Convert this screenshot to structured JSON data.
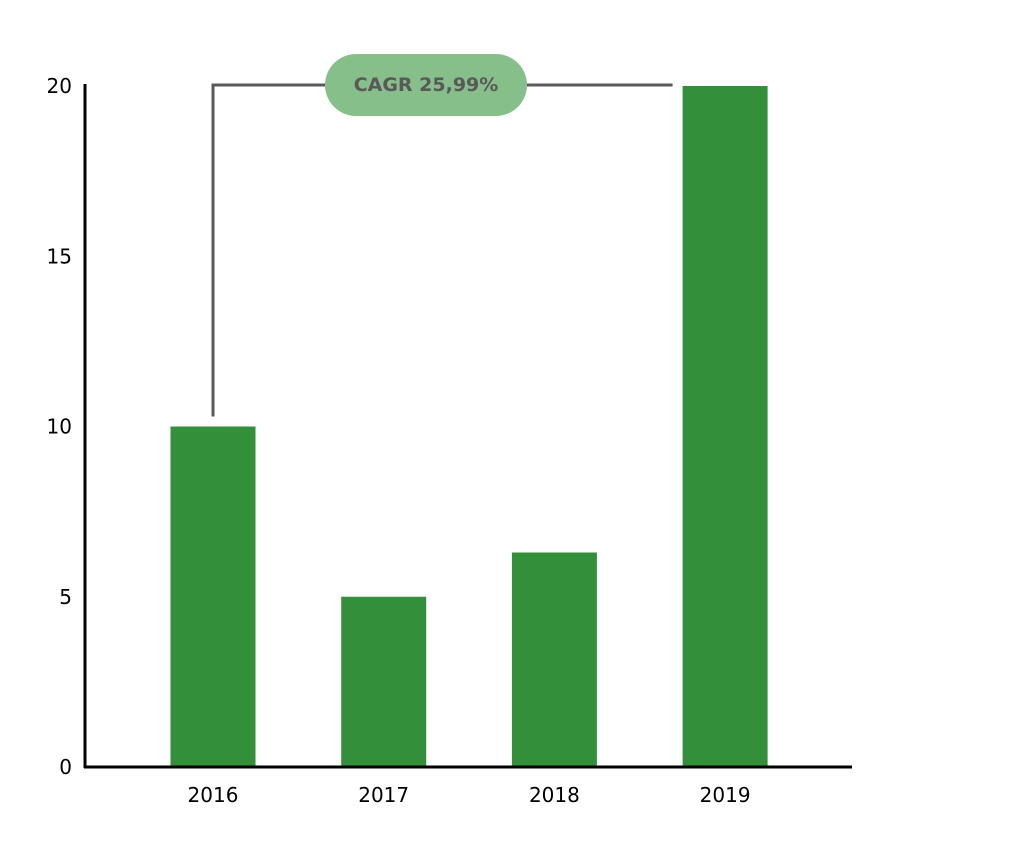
{
  "chart_data": {
    "type": "bar",
    "title": "",
    "xlabel": "",
    "ylabel": "",
    "categories": [
      "2016",
      "2017",
      "2018",
      "2019"
    ],
    "values": [
      10,
      5,
      6.3,
      20
    ],
    "ylim": [
      0,
      20
    ],
    "yticks": [
      "0",
      "5",
      "10",
      "15",
      "20"
    ],
    "grid": false,
    "legend": "none",
    "annotation": {
      "label": "CAGR 25,99%",
      "from": "2016",
      "to": "2019"
    },
    "colors": {
      "bar": "#338f3a",
      "annotation_fill": "#86bf8a",
      "annotation_text": "#595959",
      "annotation_line": "#595959",
      "axis": "#000000"
    }
  }
}
